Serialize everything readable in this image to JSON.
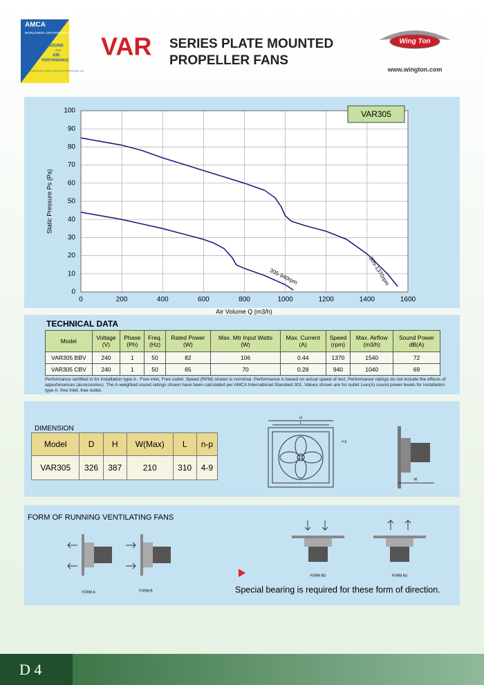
{
  "header": {
    "logo": {
      "top": "AMCA",
      "certified": "WORLDWIDE CERTIFIED RATINGS",
      "sound": "SOUND",
      "and": "AND",
      "air": "AIR",
      "performance": "PERFORMANCE",
      "association": "AIR MOVEMENT AND CONTROL ASSOCIATION INTERNATIONAL, INC."
    },
    "model": "VAR",
    "title_line1": "SERIES PLATE MOUNTED",
    "title_line2": "PROPELLER FANS",
    "brand": "Wing Ton",
    "website": "www.wington.com"
  },
  "chart_data": {
    "type": "line",
    "title": "VAR305",
    "x_label": "Air Volume Q (m3/h)",
    "y_label": "Static Pressure Ps (Pa)",
    "xlim": [
      0,
      1600
    ],
    "xticks": [
      0,
      200,
      400,
      600,
      800,
      1000,
      1200,
      1400,
      1600
    ],
    "ylim": [
      0,
      100
    ],
    "yticks": [
      0,
      10,
      20,
      30,
      40,
      50,
      60,
      70,
      80,
      90,
      100
    ],
    "grid": true,
    "series": [
      {
        "name": "305-1370rpm",
        "color": "#1c1f7c",
        "x": [
          0,
          100,
          200,
          300,
          400,
          500,
          600,
          700,
          800,
          900,
          950,
          980,
          1000,
          1030,
          1100,
          1200,
          1300,
          1400,
          1500,
          1550
        ],
        "values": [
          85,
          83,
          81,
          78,
          74,
          70.5,
          67,
          63.5,
          60,
          56,
          52,
          47,
          42,
          39,
          36.5,
          33.5,
          29,
          21,
          10,
          3
        ]
      },
      {
        "name": "305-940rpm",
        "color": "#1c1f7c",
        "x": [
          0,
          100,
          200,
          300,
          400,
          500,
          600,
          650,
          700,
          740,
          760,
          800,
          900,
          1000,
          1040
        ],
        "values": [
          44,
          42,
          40,
          37.5,
          35,
          32,
          29,
          27,
          24,
          19,
          15,
          13,
          9,
          4,
          1
        ]
      }
    ]
  },
  "technical_data": {
    "title": "TECHNICAL DATA",
    "columns": [
      [
        "Model"
      ],
      [
        "Voltage",
        "(V)"
      ],
      [
        "Phase",
        "(Ph)"
      ],
      [
        "Freq.",
        "(Hz)"
      ],
      [
        "Rated Power",
        "(W)"
      ],
      [
        "Max. Mtr Input Watts",
        "(W)"
      ],
      [
        "Max. Current",
        "(A)"
      ],
      [
        "Speed",
        "(rpm)"
      ],
      [
        "Max. Airflow",
        "(m3/h)"
      ],
      [
        "Sound Power",
        "dB(A)"
      ]
    ],
    "rows": [
      [
        "VAR305 BBV",
        240,
        1,
        50,
        82,
        106,
        0.44,
        1370,
        1540,
        72
      ],
      [
        "VAR305 CBV",
        240,
        1,
        50,
        65,
        70,
        0.28,
        940,
        1040,
        69
      ]
    ],
    "note": "Performance certified is for installation type A - Free inlet, Free outlet. Speed (RPM) shown is norminal. Performance is based on actual speed of test. Performance ratings do not include the effects of appurtenances (accessories). The A-weighted sound ratings shown have been calculated per AMCA International Standard 301. Values shown are for outlet Lwo(A) sound power levels for installation type A: free Inlet, free outlet."
  },
  "dimension": {
    "title": "DIMENSION",
    "columns": [
      "Model",
      "D",
      "H",
      "W(Max)",
      "L",
      "n-p"
    ],
    "rows": [
      [
        "VAR305",
        326,
        387,
        210,
        310,
        "4-9"
      ]
    ],
    "drawing_labels": {
      "h": "H",
      "l": "L",
      "np": "n-p",
      "w": "W"
    }
  },
  "forms": {
    "title": "FORM OF RUNNING VENTILATING FANS",
    "items": [
      "FORM A",
      "FORM B",
      "FORM BD",
      "FORM AU"
    ],
    "note": "Special bearing is required for these form of direction."
  },
  "footer": {
    "page": "D 4"
  }
}
